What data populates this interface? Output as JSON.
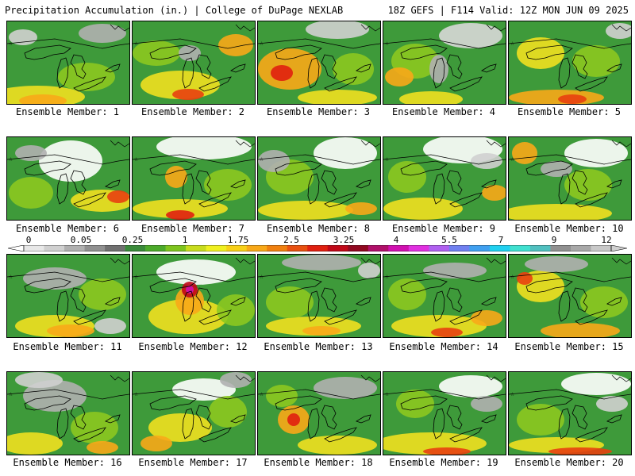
{
  "header": {
    "title_left": "Precipitation Accumulation (in.) | College of DuPage NEXLAB",
    "title_right": "18Z GEFS | F114 Valid: 12Z MON JUN 09 2025"
  },
  "members": [
    {
      "label": "Ensemble Member: 1"
    },
    {
      "label": "Ensemble Member: 2"
    },
    {
      "label": "Ensemble Member: 3"
    },
    {
      "label": "Ensemble Member: 4"
    },
    {
      "label": "Ensemble Member: 5"
    },
    {
      "label": "Ensemble Member: 6"
    },
    {
      "label": "Ensemble Member: 7"
    },
    {
      "label": "Ensemble Member: 8"
    },
    {
      "label": "Ensemble Member: 9"
    },
    {
      "label": "Ensemble Member: 10"
    },
    {
      "label": "Ensemble Member: 11"
    },
    {
      "label": "Ensemble Member: 12"
    },
    {
      "label": "Ensemble Member: 13"
    },
    {
      "label": "Ensemble Member: 14"
    },
    {
      "label": "Ensemble Member: 15"
    },
    {
      "label": "Ensemble Member: 16"
    },
    {
      "label": "Ensemble Member: 17"
    },
    {
      "label": "Ensemble Member: 18"
    },
    {
      "label": "Ensemble Member: 19"
    },
    {
      "label": "Ensemble Member: 20"
    }
  ],
  "colorbar": {
    "tick_labels": [
      "0",
      "0.05",
      "0.25",
      "1",
      "1.75",
      "2.5",
      "3.25",
      "4",
      "5.5",
      "7",
      "9",
      "12"
    ],
    "colors": [
      "#e8e8e8",
      "#d0d0d0",
      "#b0b0b0",
      "#909090",
      "#707070",
      "#3a8a3a",
      "#4caa2a",
      "#7ec41e",
      "#c8dc1e",
      "#f0f020",
      "#f8d018",
      "#f8a818",
      "#f08010",
      "#e85010",
      "#e02010",
      "#c00818",
      "#900820",
      "#b0106a",
      "#d010b0",
      "#e030e0",
      "#b060f0",
      "#7080f0",
      "#40a0f0",
      "#20d0f0",
      "#40e0d0",
      "#50c0c0",
      "#909090",
      "#a8a8a8",
      "#c8c8c8"
    ]
  }
}
